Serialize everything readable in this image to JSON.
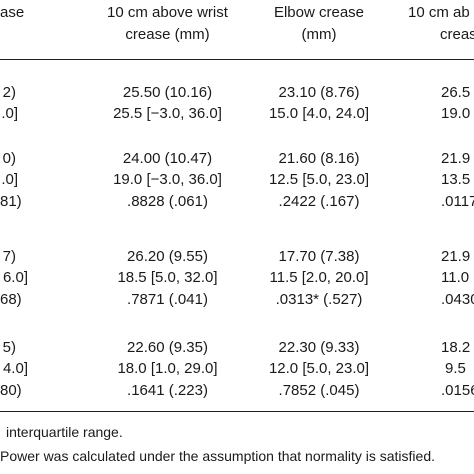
{
  "header": {
    "col1_partial": "ase",
    "col2_line1": "10 cm above wrist",
    "col2_line2": "crease (mm)",
    "col3_line1": "Elbow crease",
    "col3_line2": "(mm)",
    "col4_line1": "10 cm ab",
    "col4_line2": "creas"
  },
  "groups": [
    {
      "rows": [
        {
          "c1": "2)",
          "c2": "25.50 (10.16)",
          "c3": "23.10 (8.76)",
          "c4": "26.5"
        },
        {
          "c1": ".0]",
          "c2": "25.5 [−3.0, 36.0]",
          "c3": "15.0 [4.0, 24.0]",
          "c4": "19.0"
        }
      ]
    },
    {
      "rows": [
        {
          "c1": "0)",
          "c2": "24.00 (10.47)",
          "c3": "21.60 (8.16)",
          "c4": "21.9"
        },
        {
          "c1": ".0]",
          "c2": "19.0 [−3.0, 36.0]",
          "c3": "12.5 [5.0, 23.0]",
          "c4": "13.5"
        },
        {
          "c1": "81)",
          "c2": ".8828 (.061)",
          "c3": ".2422 (.167)",
          "c4": ".0117"
        }
      ]
    },
    {
      "rows": [
        {
          "c1": "7)",
          "c2": "26.20 (9.55)",
          "c3": "17.70 (7.38)",
          "c4": "21.9"
        },
        {
          "c1": "6.0]",
          "c2": "18.5 [5.0, 32.0]",
          "c3": "11.5 [2.0, 20.0]",
          "c4": "11.0"
        },
        {
          "c1": "68)",
          "c2": ".7871 (.041)",
          "c3": ".0313* (.527)",
          "c4": ".0430"
        }
      ]
    },
    {
      "rows": [
        {
          "c1": "5)",
          "c2": "22.60 (9.35)",
          "c3": "22.30 (9.33)",
          "c4": "18.2"
        },
        {
          "c1": "4.0]",
          "c2": "18.0 [1.0, 29.0]",
          "c3": "12.0 [5.0, 23.0]",
          "c4": "9.5"
        },
        {
          "c1": "80)",
          "c2": ".1641 (.223)",
          "c3": ".7852 (.045)",
          "c4": ".0156"
        }
      ]
    }
  ],
  "footnotes": {
    "line1": "interquartile range.",
    "line2": "Power was calculated under the assumption that normality is satisfied."
  }
}
